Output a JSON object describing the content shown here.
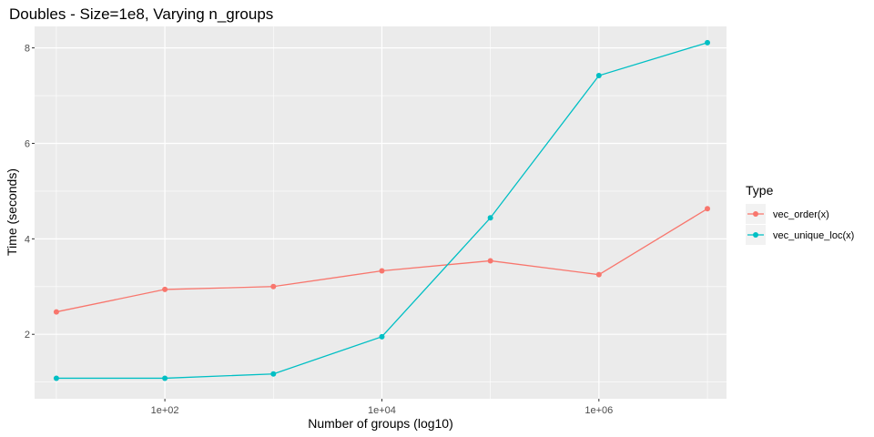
{
  "chart_data": {
    "type": "line",
    "title": "Doubles - Size=1e8, Varying n_groups",
    "xlabel": "Number of groups (log10)",
    "ylabel": "Time (seconds)",
    "x_scale": "log10",
    "x": [
      10,
      100,
      1000,
      10000,
      100000,
      1000000,
      10000000
    ],
    "xlim": [
      6.3,
      15000000
    ],
    "ylim": [
      0.65,
      8.45
    ],
    "x_ticks": [
      {
        "value": 100,
        "label": "1e+02"
      },
      {
        "value": 10000,
        "label": "1e+04"
      },
      {
        "value": 1000000,
        "label": "1e+06"
      }
    ],
    "x_minor_ticks": [
      10,
      1000,
      100000,
      10000000
    ],
    "y_ticks": [
      {
        "value": 2,
        "label": "2"
      },
      {
        "value": 4,
        "label": "4"
      },
      {
        "value": 6,
        "label": "6"
      },
      {
        "value": 8,
        "label": "8"
      }
    ],
    "y_minor_ticks": [
      1,
      3,
      5,
      7
    ],
    "grid": true,
    "legend": {
      "title": "Type",
      "position": "right"
    },
    "series": [
      {
        "name": "vec_order(x)",
        "color": "#F8766D",
        "values": [
          2.47,
          2.94,
          3.0,
          3.33,
          3.54,
          3.25,
          4.63
        ]
      },
      {
        "name": "vec_unique_loc(x)",
        "color": "#00BFC4",
        "values": [
          1.08,
          1.08,
          1.17,
          1.95,
          4.44,
          7.42,
          8.11
        ]
      }
    ]
  }
}
